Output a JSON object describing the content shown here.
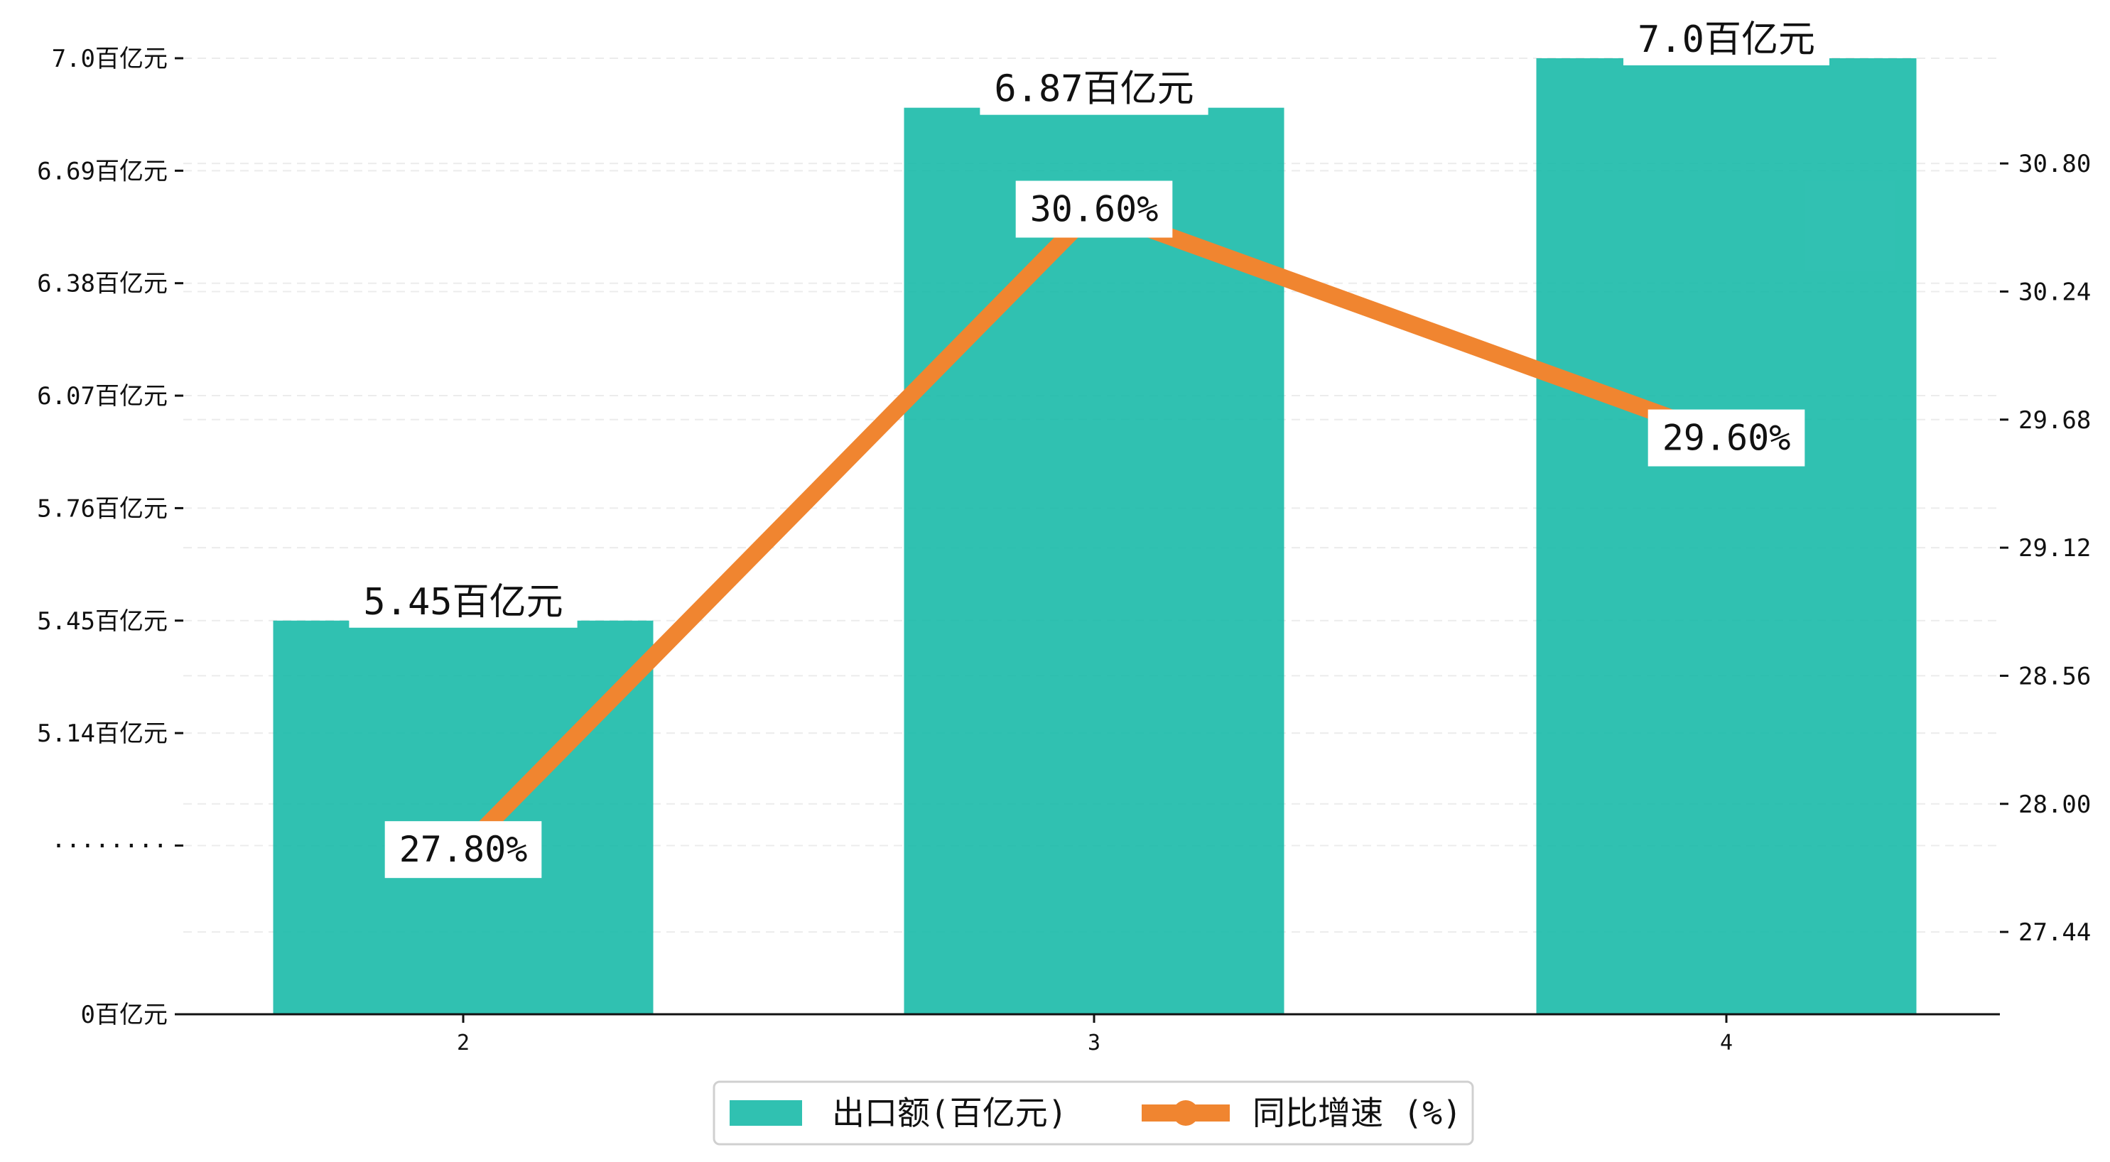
{
  "chart_data": {
    "type": "bar",
    "categories": [
      "2",
      "3",
      "4"
    ],
    "series": [
      {
        "name": "出口额(百亿元)",
        "type": "bar",
        "axis": "left",
        "values": [
          5.45,
          6.87,
          7.0
        ],
        "data_labels": [
          "5.45百亿元",
          "6.87百亿元",
          "7.0百亿元"
        ],
        "color": "#1abaa9"
      },
      {
        "name": "同比增速 (%)",
        "type": "line",
        "axis": "right",
        "values": [
          27.8,
          30.6,
          29.6
        ],
        "data_labels": [
          "27.80%",
          "30.60%",
          "29.60%"
        ],
        "color": "#f08530"
      }
    ],
    "left_axis": {
      "ticks": [
        {
          "value": 0,
          "label": "0百亿元"
        },
        {
          "value": 1.5,
          "label": "········"
        },
        {
          "value": 2.5,
          "label": "5.14百亿元"
        },
        {
          "value": 3.5,
          "label": "5.45百亿元"
        },
        {
          "value": 4.5,
          "label": "5.76百亿元"
        },
        {
          "value": 5.5,
          "label": "6.07百亿元"
        },
        {
          "value": 6.5,
          "label": "6.38百亿元"
        },
        {
          "value": 7.5,
          "label": "6.69百亿元"
        },
        {
          "value": 8.5,
          "label": "7.0百亿元"
        }
      ],
      "display_range": [
        0,
        8.5
      ],
      "bar_display_values": [
        3.5,
        8.06,
        8.5
      ]
    },
    "right_axis": {
      "ticks": [
        27.44,
        28.0,
        28.56,
        29.12,
        29.68,
        30.24,
        30.8
      ],
      "tick_labels": [
        "27.44",
        "28.00",
        "28.56",
        "29.12",
        "29.68",
        "30.24",
        "30.80"
      ],
      "ylim": [
        27.08,
        31.26
      ]
    },
    "grid": true,
    "grid_style": "dashed horizontal",
    "legend_position": "bottom-center"
  }
}
